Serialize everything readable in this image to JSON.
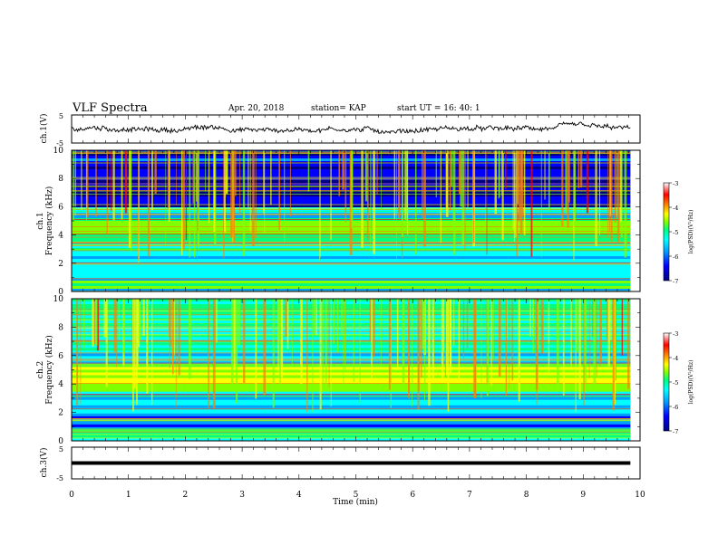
{
  "header": {
    "title": "VLF Spectra",
    "date": "Apr. 20, 2018",
    "station": "station= KAP",
    "start": "start  UT =   16: 40: 1"
  },
  "chart_data": {
    "type": "heatmap",
    "xlabel": "Time  (min)",
    "xlim": [
      0,
      10
    ],
    "xticks": [
      "0",
      "1",
      "2",
      "3",
      "4",
      "5",
      "6",
      "7",
      "8",
      "9",
      "10"
    ],
    "panels": [
      {
        "id": "ch1-waveform",
        "type": "line",
        "ylabel": "ch.1(V)",
        "ylim": [
          -5,
          5
        ],
        "yticks": [
          "5",
          "-5"
        ]
      },
      {
        "id": "ch1-spectrogram",
        "type": "heatmap",
        "ylabel_top": "ch.1",
        "ylabel": "Frequency  (kHz)",
        "ylim": [
          0,
          10
        ],
        "yticks": [
          "0",
          "2",
          "4",
          "6",
          "8",
          "10"
        ],
        "colorbar": {
          "label": "log(PSD)(V²/Hz)",
          "range": [
            -7,
            -3
          ],
          "ticks": [
            "-3",
            "-4",
            "-5",
            "-6",
            "-7"
          ]
        }
      },
      {
        "id": "ch2-spectrogram",
        "type": "heatmap",
        "ylabel_top": "ch.2",
        "ylabel": "Frequency  (kHz)",
        "ylim": [
          0,
          10
        ],
        "yticks": [
          "0",
          "2",
          "4",
          "6",
          "8",
          "10"
        ],
        "colorbar": {
          "label": "log(PSD)(V²/Hz)",
          "range": [
            -7,
            -3
          ],
          "ticks": [
            "-3",
            "-4",
            "-5",
            "-6",
            "-7"
          ]
        }
      },
      {
        "id": "ch3-waveform",
        "type": "line",
        "ylabel": "ch.3(V)",
        "ylim": [
          -5,
          5
        ],
        "yticks": [
          "5",
          "-5"
        ],
        "level": 0
      }
    ],
    "data_end_min": 9.83,
    "colormap": [
      "#000080",
      "#0000ff",
      "#00a0ff",
      "#00ffff",
      "#00ff80",
      "#80ff00",
      "#ffff00",
      "#ff8000",
      "#ff0000",
      "#ffffff"
    ]
  }
}
